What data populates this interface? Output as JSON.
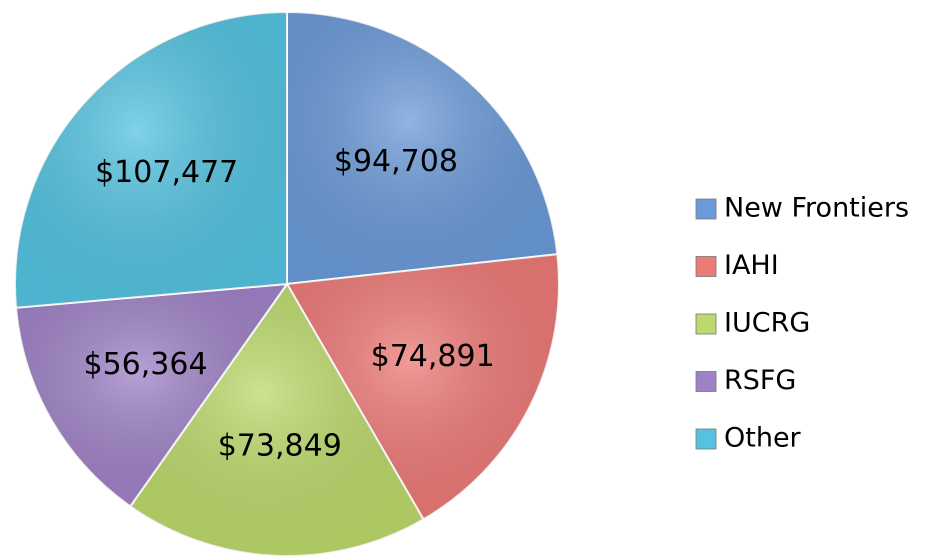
{
  "chart_data": {
    "type": "pie",
    "categories": [
      "New Frontiers",
      "IAHI",
      "IUCRG",
      "RSFG",
      "Other"
    ],
    "values": [
      94708,
      74891,
      73849,
      56364,
      107477
    ],
    "value_labels": [
      "$94,708",
      "$74,891",
      "$73,849",
      "$56,364",
      "$107,477"
    ],
    "colors": [
      "#6b9ad8",
      "#ec7a77",
      "#bcd96b",
      "#9f82c6",
      "#55c3e0"
    ],
    "legend": "right"
  }
}
